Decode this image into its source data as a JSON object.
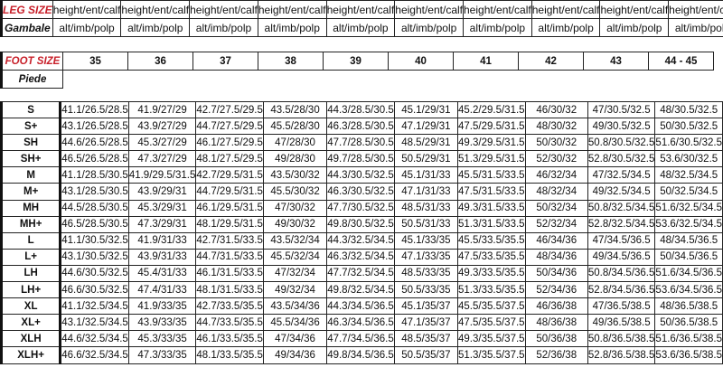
{
  "leg_size": {
    "label": "LEG SIZE",
    "sublabel": "Gambale",
    "line1": "height/ent/calf",
    "line2": "alt/imb/polp",
    "columns": 10
  },
  "foot_size": {
    "label": "FOOT SIZE",
    "sublabel": "Piede",
    "sizes": [
      "35",
      "36",
      "37",
      "38",
      "39",
      "40",
      "41",
      "42",
      "43",
      "44 - 45"
    ]
  },
  "colors": {
    "label_red": "#c8202a"
  },
  "rows": [
    {
      "size": "S",
      "values": [
        "41.1/26.5/28.5",
        "41.9/27/29",
        "42.7/27.5/29.5",
        "43.5/28/30",
        "44.3/28.5/30.5",
        "45.1/29/31",
        "45.2/29.5/31.5",
        "46/30/32",
        "47/30.5/32.5",
        "48/30.5/32.5"
      ]
    },
    {
      "size": "S+",
      "values": [
        "43.1/26.5/28.5",
        "43.9/27/29",
        "44.7/27.5/29.5",
        "45.5/28/30",
        "46.3/28.5/30.5",
        "47.1/29/31",
        "47.5/29.5/31.5",
        "48/30/32",
        "49/30.5/32.5",
        "50/30.5/32.5"
      ]
    },
    {
      "size": "SH",
      "values": [
        "44.6/26.5/28.5",
        "45.3/27/29",
        "46.1/27.5/29.5",
        "47/28/30",
        "47.7/28.5/30.5",
        "48.5/29/31",
        "49.3/29.5/31.5",
        "50/30/32",
        "50.8/30.5/32.5",
        "51.6/30.5/32.5"
      ]
    },
    {
      "size": "SH+",
      "values": [
        "46.5/26.5/28.5",
        "47.3/27/29",
        "48.1/27.5/29.5",
        "49/28/30",
        "49.7/28.5/30.5",
        "50.5/29/31",
        "51.3/29.5/31.5",
        "52/30/32",
        "52.8/30.5/32.5",
        "53.6/30/32.5"
      ]
    },
    {
      "size": "M",
      "values": [
        "41.1/28.5/30.5",
        "41.9/29.5/31.5",
        "42.7/29.5/31.5",
        "43.5/30/32",
        "44.3/30.5/32.5",
        "45.1/31/33",
        "45.5/31.5/33.5",
        "46/32/34",
        "47/32.5/34.5",
        "48/32.5/34.5"
      ]
    },
    {
      "size": "M+",
      "values": [
        "43.1/28.5/30.5",
        "43.9/29/31",
        "44.7/29.5/31.5",
        "45.5/30/32",
        "46.3/30.5/32.5",
        "47.1/31/33",
        "47.5/31.5/33.5",
        "48/32/34",
        "49/32.5/34.5",
        "50/32.5/34.5"
      ]
    },
    {
      "size": "MH",
      "values": [
        "44.5/28.5/30.5",
        "45.3/29/31",
        "46.1/29.5/31.5",
        "47/30/32",
        "47.7/30.5/32.5",
        "48.5/31/33",
        "49.3/31.5/33.5",
        "50/32/34",
        "50.8/32.5/34.5",
        "51.6/32.5/34.5"
      ]
    },
    {
      "size": "MH+",
      "values": [
        "46.5/28.5/30.5",
        "47.3/29/31",
        "48.1/29.5/31.5",
        "49/30/32",
        "49.8/30.5/32.5",
        "50.5/31/33",
        "51.3/31.5/33.5",
        "52/32/34",
        "52.8/32.5/34.5",
        "53.6/32.5/34.5"
      ]
    },
    {
      "size": "L",
      "values": [
        "41.1/30.5/32.5",
        "41.9/31/33",
        "42.7/31.5/33.5",
        "43.5/32/34",
        "44.3/32.5/34.5",
        "45.1/33/35",
        "45.5/33.5/35.5",
        "46/34/36",
        "47/34.5/36.5",
        "48/34.5/36.5"
      ]
    },
    {
      "size": "L+",
      "values": [
        "43.1/30.5/32.5",
        "43.9/31/33",
        "44.7/31.5/33.5",
        "45.5/32/34",
        "46.3/32.5/34.5",
        "47.1/33/35",
        "47.5/33.5/35.5",
        "48/34/36",
        "49/34.5/36.5",
        "50/34.5/36.5"
      ]
    },
    {
      "size": "LH",
      "values": [
        "44.6/30.5/32.5",
        "45.4/31/33",
        "46.1/31.5/33.5",
        "47/32/34",
        "47.7/32.5/34.5",
        "48.5/33/35",
        "49.3/33.5/35.5",
        "50/34/36",
        "50.8/34.5/36.5",
        "51.6/34.5/36.5"
      ]
    },
    {
      "size": "LH+",
      "values": [
        "46.6/30.5/32.5",
        "47.4/31/33",
        "48.1/31.5/33.5",
        "49/32/34",
        "49.8/32.5/34.5",
        "50.5/33/35",
        "51.3/33.5/35.5",
        "52/34/36",
        "52.8/34.5/36.5",
        "53.6/34.5/36.5"
      ]
    },
    {
      "size": "XL",
      "values": [
        "41.1/32.5/34.5",
        "41.9/33/35",
        "42.7/33.5/35.5",
        "43.5/34/36",
        "44.3/34.5/36.5",
        "45.1/35/37",
        "45.5/35.5/37.5",
        "46/36/38",
        "47/36.5/38.5",
        "48/36.5/38.5"
      ]
    },
    {
      "size": "XL+",
      "values": [
        "43.1/32.5/34.5",
        "43.9/33/35",
        "44.7/33.5/35.5",
        "45.5/34/36",
        "46.3/34.5/36.5",
        "47.1/35/37",
        "47.5/35.5/37.5",
        "48/36/38",
        "49/36.5/38.5",
        "50/36.5/38.5"
      ]
    },
    {
      "size": "XLH",
      "values": [
        "44.6/32.5/34.5",
        "45.3/33/35",
        "46.1/33.5/35.5",
        "47/34/36",
        "47.7/34.5/36.5",
        "48.5/35/37",
        "49.3/35.5/37.5",
        "50/36/38",
        "50.8/36.5/38.5",
        "51.6/36.5/38.5"
      ]
    },
    {
      "size": "XLH+",
      "values": [
        "46.6/32.5/34.5",
        "47.3/33/35",
        "48.1/33.5/35.5",
        "49/34/36",
        "49.8/34.5/36.5",
        "50.5/35/37",
        "51.3/35.5/37.5",
        "52/36/38",
        "52.8/36.5/38.5",
        "53.6/36.5/38.5"
      ]
    }
  ]
}
